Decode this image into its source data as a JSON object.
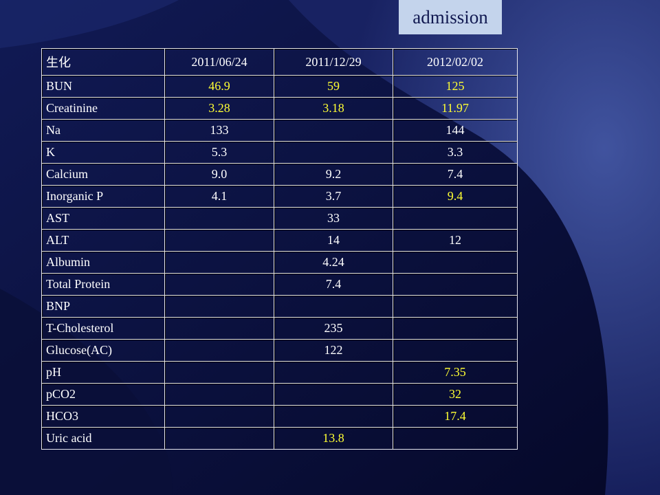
{
  "label": "admission",
  "table": {
    "header": [
      "生化",
      "2011/06/24",
      "2011/12/29",
      "2012/02/02"
    ],
    "highlight_color": "#ffff33",
    "rows": [
      {
        "label": "BUN",
        "values": [
          "46.9",
          "59",
          "125"
        ],
        "highlight": [
          true,
          true,
          true
        ]
      },
      {
        "label": "Creatinine",
        "values": [
          "3.28",
          "3.18",
          "11.97"
        ],
        "highlight": [
          true,
          true,
          true
        ]
      },
      {
        "label": "Na",
        "values": [
          "133",
          null,
          "144"
        ],
        "highlight": [
          false,
          false,
          false
        ]
      },
      {
        "label": "K",
        "values": [
          "5.3",
          null,
          "3.3"
        ],
        "highlight": [
          false,
          false,
          false
        ]
      },
      {
        "label": "Calcium",
        "values": [
          "9.0",
          "9.2",
          "7.4"
        ],
        "highlight": [
          false,
          false,
          false
        ]
      },
      {
        "label": "Inorganic P",
        "values": [
          "4.1",
          "3.7",
          "9.4"
        ],
        "highlight": [
          false,
          false,
          true
        ]
      },
      {
        "label": "AST",
        "values": [
          null,
          "33",
          null
        ],
        "highlight": [
          false,
          false,
          false
        ]
      },
      {
        "label": "ALT",
        "values": [
          null,
          "14",
          "12"
        ],
        "highlight": [
          false,
          false,
          false
        ]
      },
      {
        "label": "Albumin",
        "values": [
          null,
          "4.24",
          null
        ],
        "highlight": [
          false,
          false,
          false
        ]
      },
      {
        "label": "Total Protein",
        "values": [
          null,
          "7.4",
          null
        ],
        "highlight": [
          false,
          false,
          false
        ]
      },
      {
        "label": "BNP",
        "values": [
          null,
          null,
          null
        ],
        "highlight": [
          false,
          false,
          false
        ]
      },
      {
        "label": "T-Cholesterol",
        "values": [
          null,
          "235",
          null
        ],
        "highlight": [
          false,
          false,
          false
        ]
      },
      {
        "label": "Glucose(AC)",
        "values": [
          null,
          "122",
          null
        ],
        "highlight": [
          false,
          false,
          false
        ]
      },
      {
        "label": "pH",
        "values": [
          null,
          null,
          "7.35"
        ],
        "highlight": [
          false,
          false,
          true
        ]
      },
      {
        "label": "pCO2",
        "values": [
          null,
          null,
          "32"
        ],
        "highlight": [
          false,
          false,
          true
        ]
      },
      {
        "label": "HCO3",
        "values": [
          null,
          null,
          "17.4"
        ],
        "highlight": [
          false,
          false,
          true
        ]
      },
      {
        "label": "Uric acid",
        "values": [
          null,
          "13.8",
          null
        ],
        "highlight": [
          false,
          true,
          false
        ]
      }
    ]
  }
}
